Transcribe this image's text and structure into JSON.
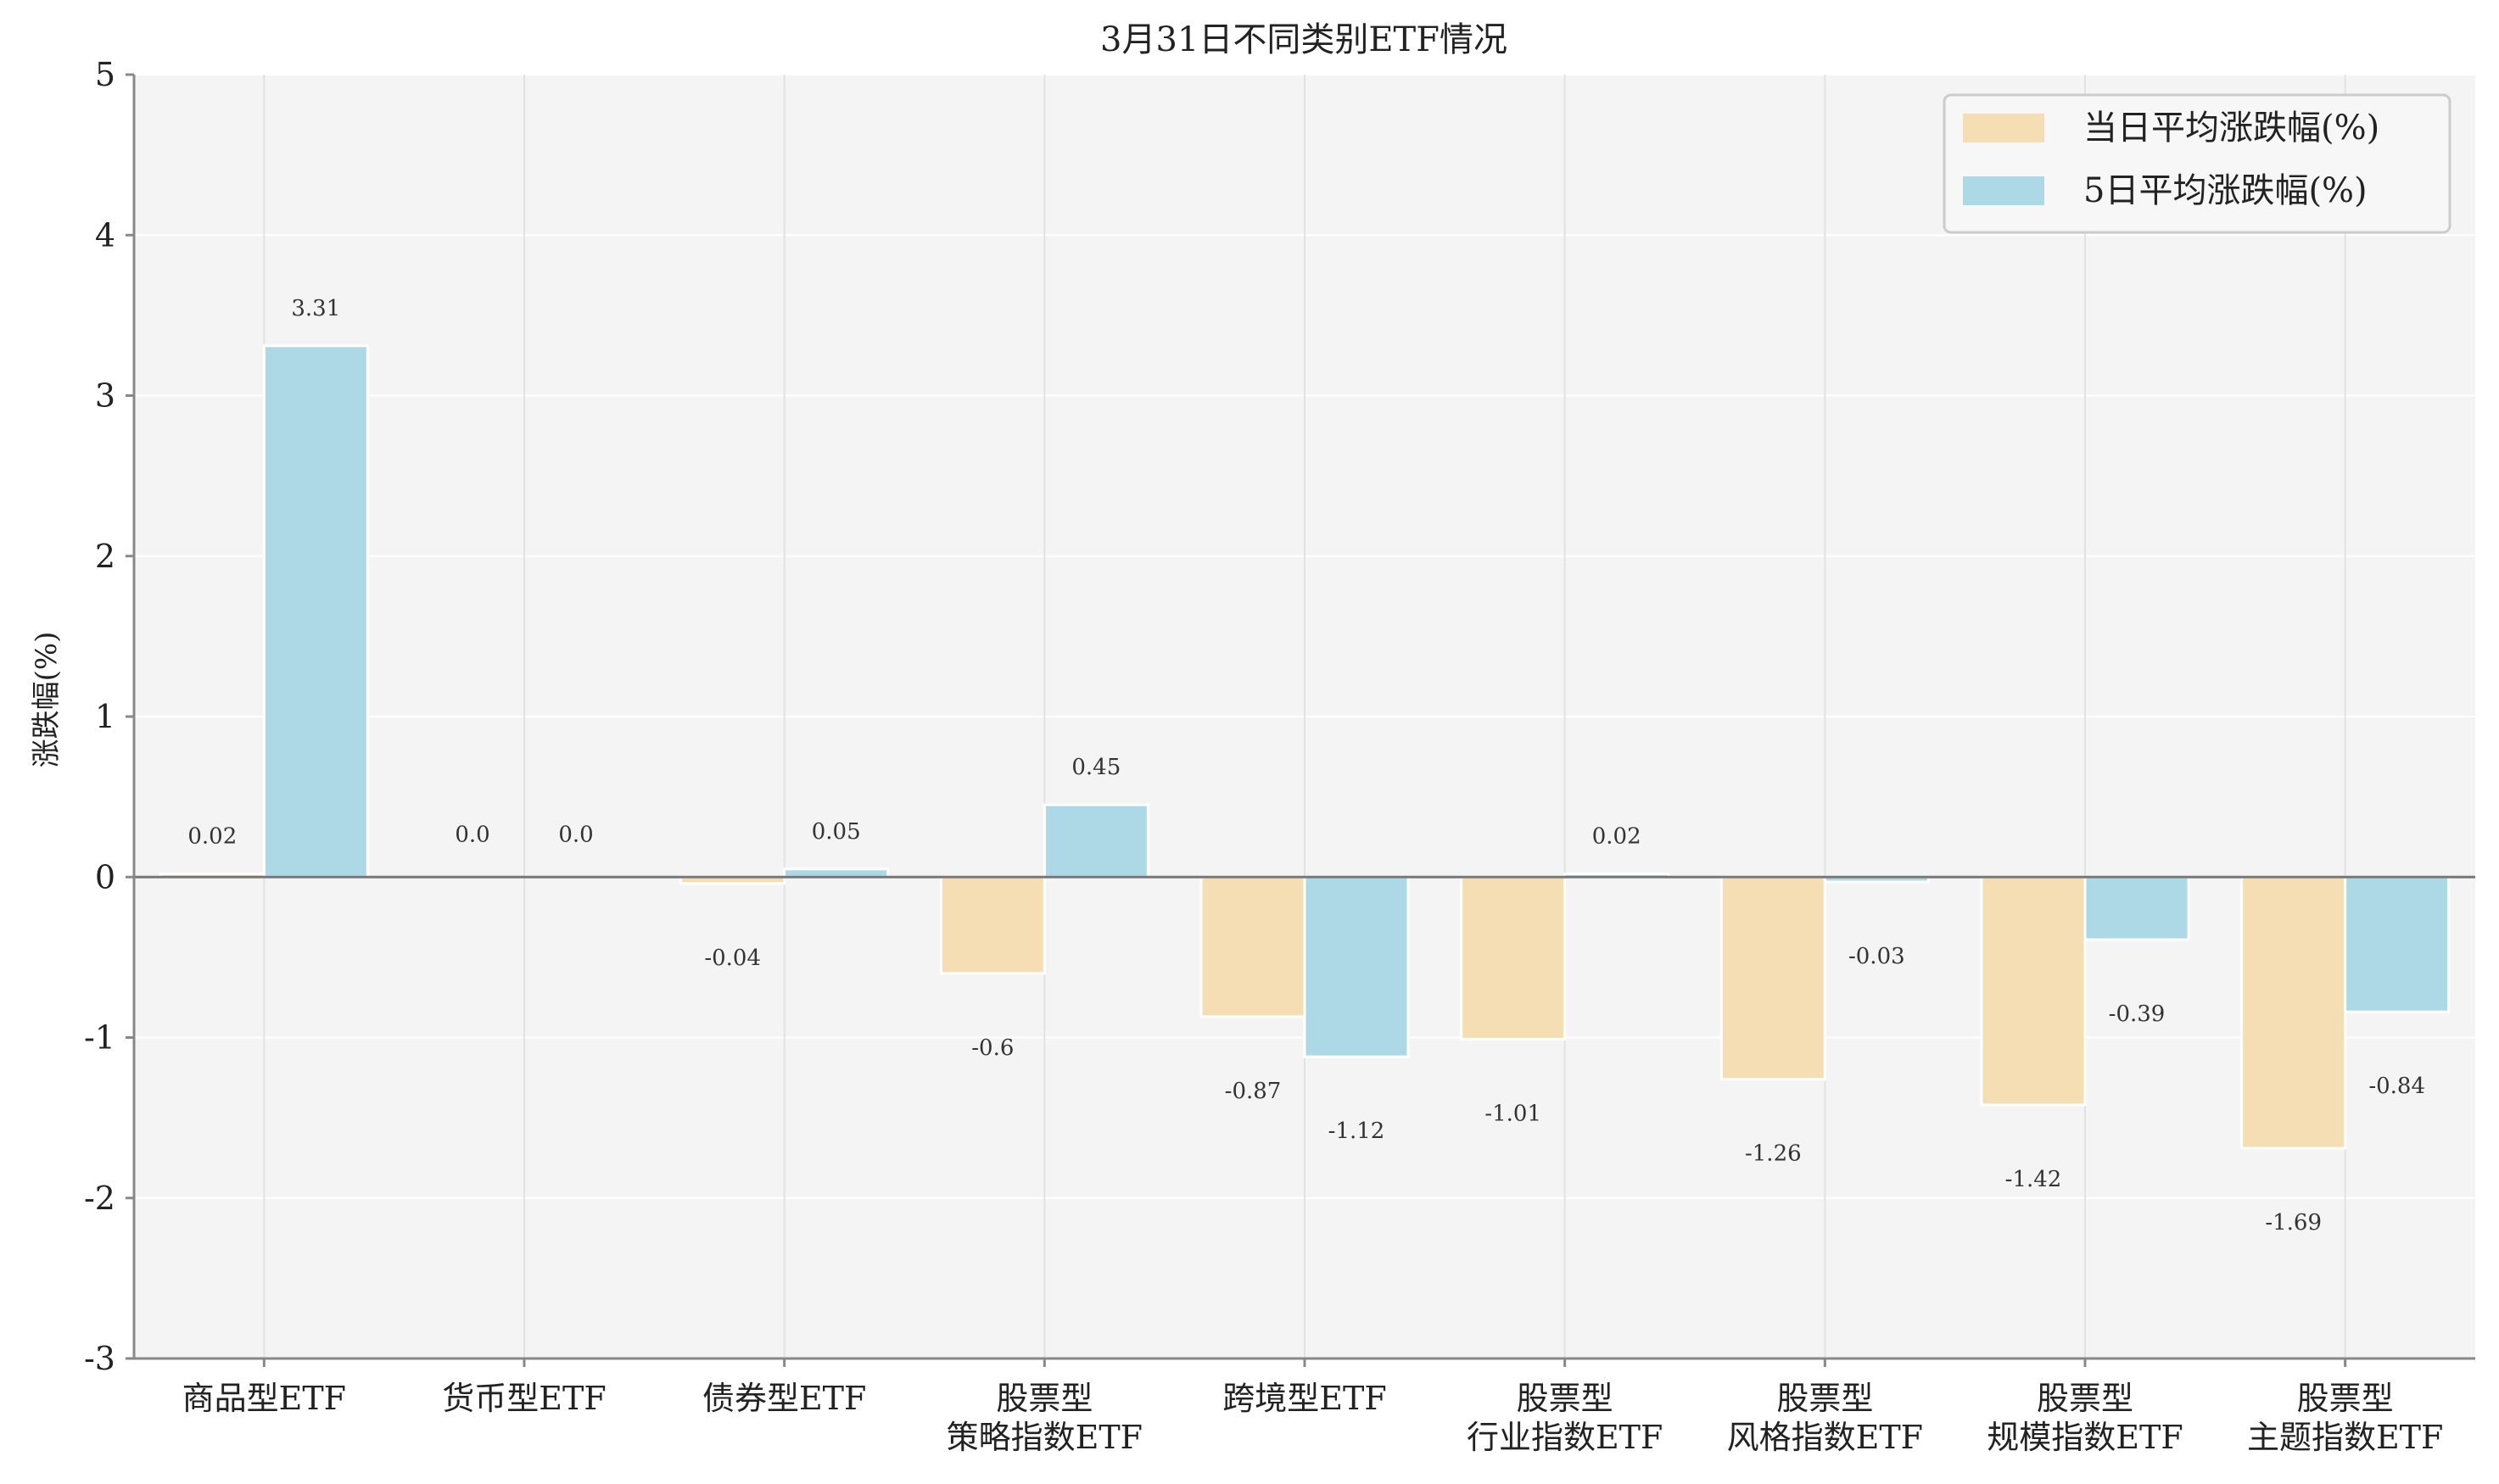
{
  "chart_data": {
    "type": "bar",
    "title": "3月31日不同类别ETF情况",
    "xlabel": "",
    "ylabel": "涨跌幅(%)",
    "ylim": [
      -3,
      5
    ],
    "yticks": [
      -3,
      -2,
      -1,
      0,
      1,
      2,
      3,
      4,
      5
    ],
    "grid": true,
    "legend_position": "top-right",
    "categories": [
      [
        "商品型ETF"
      ],
      [
        "货币型ETF"
      ],
      [
        "债券型ETF"
      ],
      [
        "股票型",
        "策略指数ETF"
      ],
      [
        "跨境型ETF"
      ],
      [
        "股票型",
        "行业指数ETF"
      ],
      [
        "股票型",
        "风格指数ETF"
      ],
      [
        "股票型",
        "规模指数ETF"
      ],
      [
        "股票型",
        "主题指数ETF"
      ]
    ],
    "series": [
      {
        "name": "当日平均涨跌幅(%)",
        "color": "#F5DEB3",
        "values": [
          0.02,
          0.0,
          -0.04,
          -0.6,
          -0.87,
          -1.01,
          -1.26,
          -1.42,
          -1.69
        ],
        "labels": [
          "0.02",
          "0.0",
          "-0.04",
          "-0.6",
          "-0.87",
          "-1.01",
          "-1.26",
          "-1.42",
          "-1.69"
        ]
      },
      {
        "name": "5日平均涨跌幅(%)",
        "color": "#ADD8E6",
        "values": [
          3.31,
          0.0,
          0.05,
          0.45,
          -1.12,
          0.02,
          -0.03,
          -0.39,
          -0.84
        ],
        "labels": [
          "3.31",
          "0.0",
          "0.05",
          "0.45",
          "-1.12",
          "0.02",
          "-0.03",
          "-0.39",
          "-0.84"
        ]
      }
    ],
    "colors": {
      "plot_background": "#F4F4F4",
      "grid": "#FFFFFF",
      "zero_line": "#777777",
      "axis": "#888888"
    }
  }
}
